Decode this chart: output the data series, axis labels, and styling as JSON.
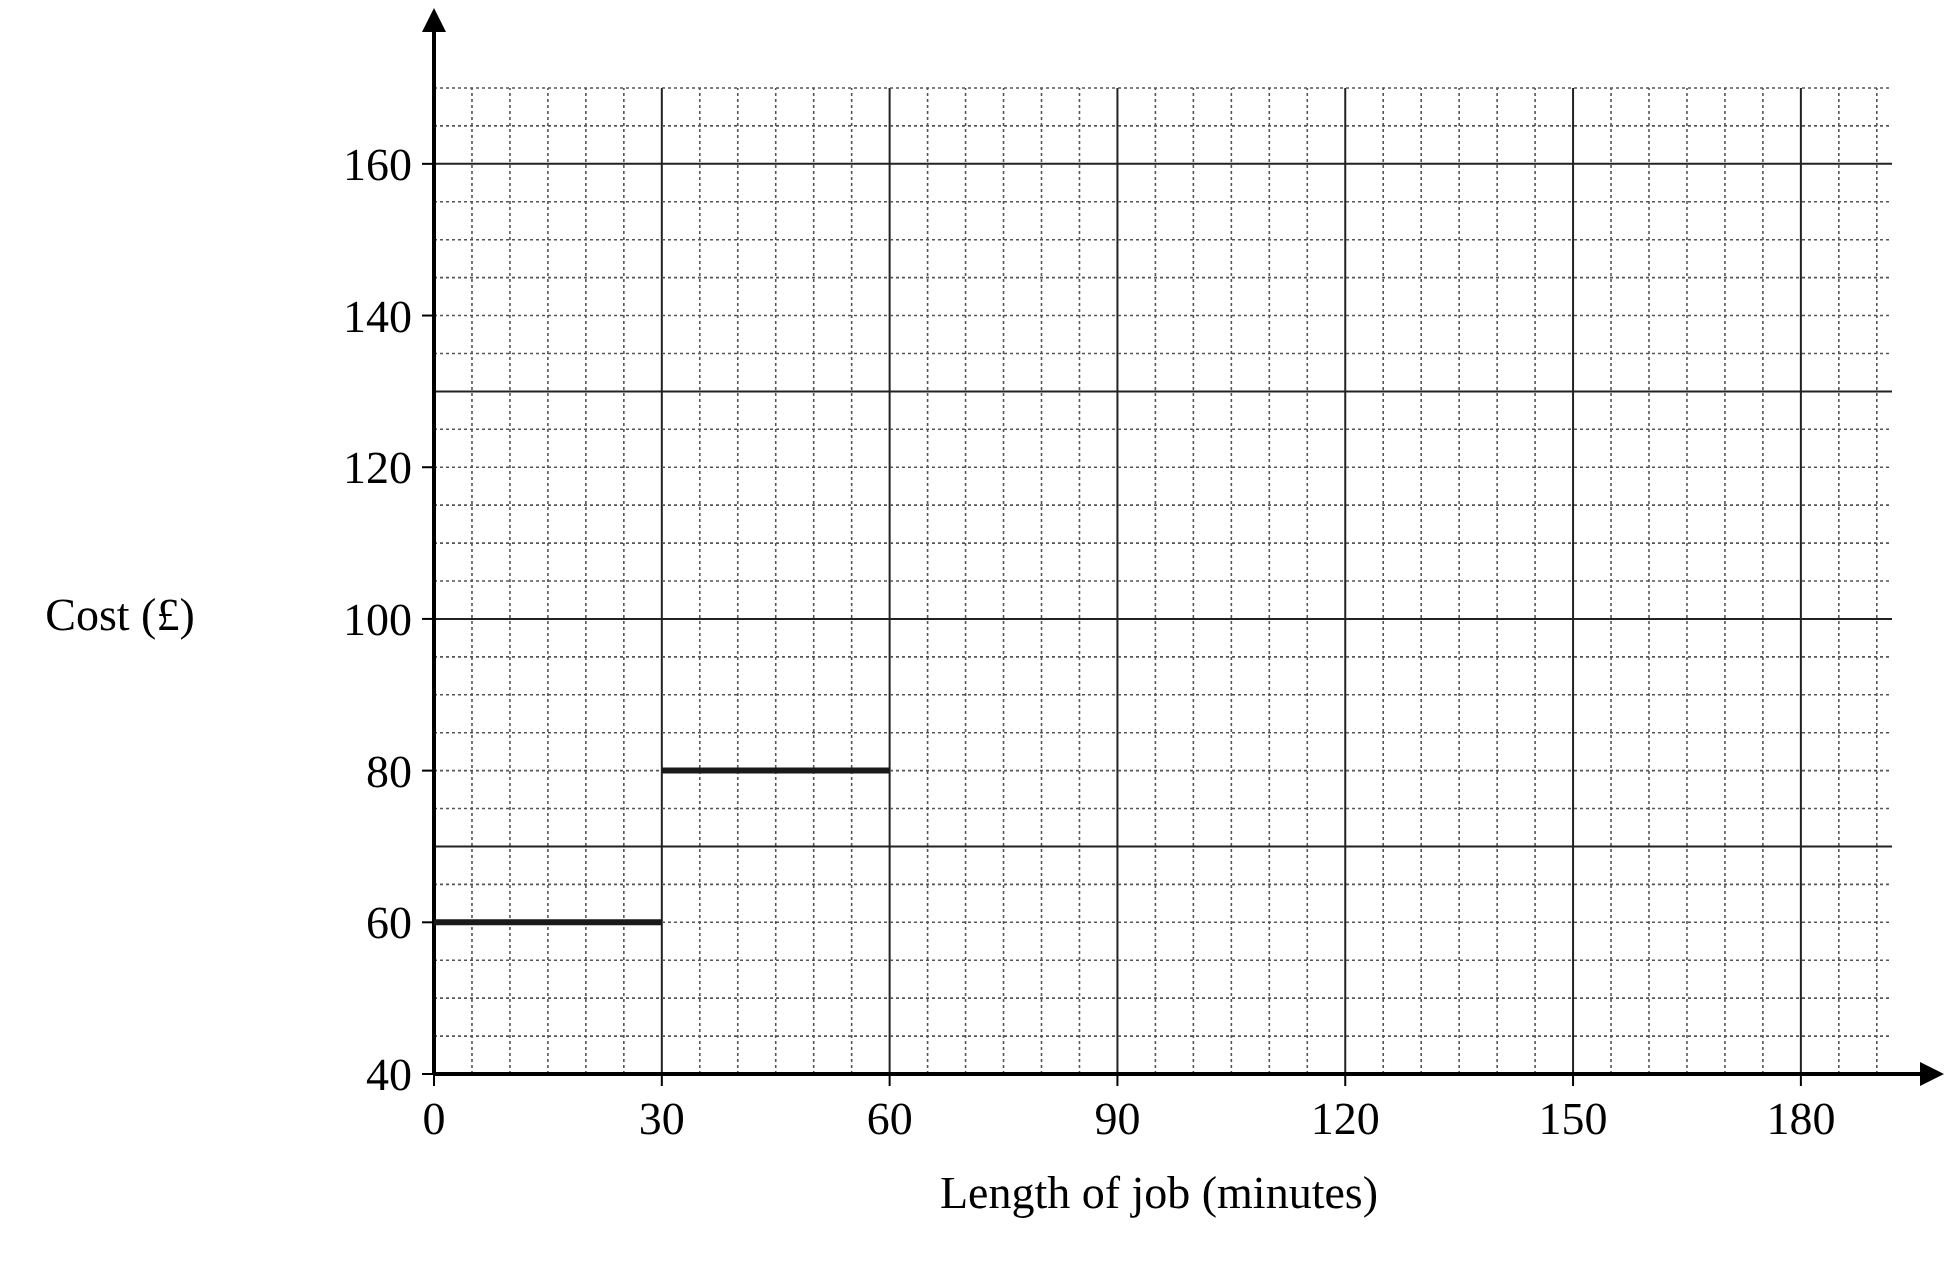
{
  "chart_data": {
    "type": "line",
    "xlabel": "Length of job (minutes)",
    "ylabel": "Cost (£)",
    "xlim": [
      0,
      192
    ],
    "ylim": [
      40,
      170
    ],
    "xticks": [
      0,
      30,
      60,
      90,
      120,
      150,
      180
    ],
    "yticks": [
      40,
      60,
      80,
      100,
      120,
      140,
      160
    ],
    "grid": true,
    "marker": "none",
    "line_style": "solid",
    "series": [
      {
        "color": "#1a1a1a",
        "x": [
          0,
          30
        ],
        "values": [
          60,
          60
        ]
      },
      {
        "color": "#1a1a1a",
        "x": [
          30,
          60
        ],
        "values": [
          80,
          80
        ]
      }
    ]
  }
}
